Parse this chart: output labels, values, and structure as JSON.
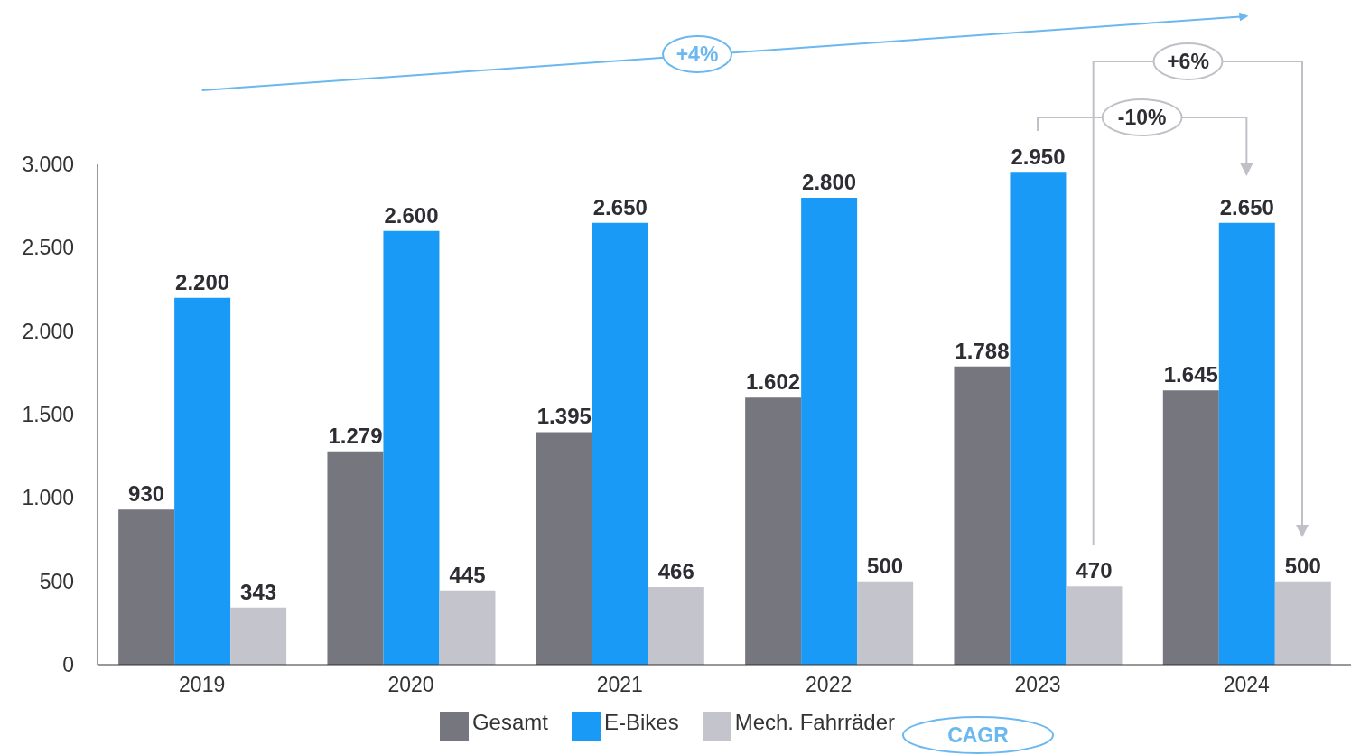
{
  "chart_data": {
    "type": "bar",
    "categories": [
      "2019",
      "2020",
      "2021",
      "2022",
      "2023",
      "2024"
    ],
    "series": [
      {
        "name": "Gesamt",
        "color": "#76767f",
        "values": [
          930,
          1279,
          1395,
          1602,
          1788,
          1645
        ],
        "value_labels": [
          "930",
          "1.279",
          "1.395",
          "1.602",
          "1.788",
          "1.645"
        ]
      },
      {
        "name": "E-Bikes",
        "color": "#1a9af7",
        "values": [
          2200,
          2600,
          2650,
          2800,
          2950,
          2650
        ],
        "value_labels": [
          "2.200",
          "2.600",
          "2.650",
          "2.800",
          "2.950",
          "2.650"
        ]
      },
      {
        "name": "Mech. Fahrräder",
        "color": "#c4c4cc",
        "values": [
          343,
          445,
          466,
          500,
          470,
          500
        ],
        "value_labels": [
          "343",
          "445",
          "466",
          "500",
          "470",
          "500"
        ]
      }
    ],
    "ylim": [
      0,
      3000
    ],
    "yticks": [
      0,
      500,
      {
        "value": 1000,
        "label": "1.000"
      },
      {
        "value": 1500,
        "label": "1.500"
      },
      {
        "value": 2000,
        "label": "2.000"
      },
      {
        "value": 2500,
        "label": "2.500"
      },
      {
        "value": 3000,
        "label": "3.000"
      }
    ],
    "grid": false,
    "legend": "bottom",
    "annotations": [
      "+4%",
      "+6%",
      "-10%",
      "CAGR"
    ]
  }
}
